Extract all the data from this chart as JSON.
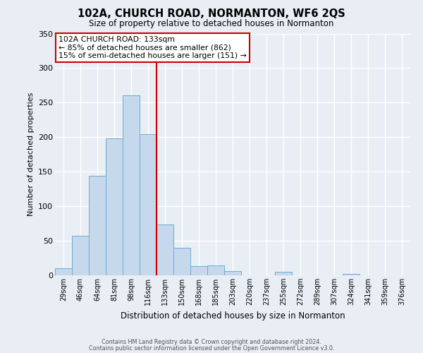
{
  "title": "102A, CHURCH ROAD, NORMANTON, WF6 2QS",
  "subtitle": "Size of property relative to detached houses in Normanton",
  "xlabel": "Distribution of detached houses by size in Normanton",
  "ylabel": "Number of detached properties",
  "bin_labels": [
    "29sqm",
    "46sqm",
    "64sqm",
    "81sqm",
    "98sqm",
    "116sqm",
    "133sqm",
    "150sqm",
    "168sqm",
    "185sqm",
    "203sqm",
    "220sqm",
    "237sqm",
    "255sqm",
    "272sqm",
    "289sqm",
    "307sqm",
    "324sqm",
    "341sqm",
    "359sqm",
    "376sqm"
  ],
  "bar_values": [
    10,
    57,
    144,
    198,
    261,
    204,
    74,
    40,
    13,
    14,
    6,
    0,
    0,
    5,
    0,
    0,
    0,
    2,
    0,
    0,
    0
  ],
  "bar_color": "#c5d8ec",
  "bar_edge_color": "#6aadd5",
  "vline_index": 6,
  "vline_color": "#cc0000",
  "ylim": [
    0,
    350
  ],
  "yticks": [
    0,
    50,
    100,
    150,
    200,
    250,
    300,
    350
  ],
  "annotation_title": "102A CHURCH ROAD: 133sqm",
  "annotation_line1": "← 85% of detached houses are smaller (862)",
  "annotation_line2": "15% of semi-detached houses are larger (151) →",
  "annotation_box_color": "#cc0000",
  "footer_line1": "Contains HM Land Registry data © Crown copyright and database right 2024.",
  "footer_line2": "Contains public sector information licensed under the Open Government Licence v3.0.",
  "background_color": "#e8eef4",
  "grid_color": "#ffffff"
}
